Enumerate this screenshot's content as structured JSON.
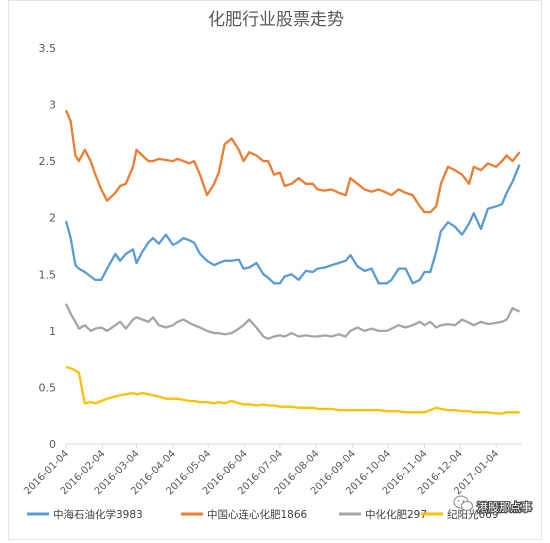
{
  "chart_data": {
    "type": "line",
    "title": "化肥行业股票走势",
    "xlabel": "",
    "ylabel": "",
    "ylim": [
      0,
      3.5
    ],
    "yticks": [
      "0",
      "0.5",
      "1",
      "1.5",
      "2",
      "2.5",
      "3",
      "3.5"
    ],
    "xticks": [
      "2016-01-04",
      "2016-02-04",
      "2016-03-04",
      "2016-04-04",
      "2016-05-04",
      "2016-06-04",
      "2016-07-04",
      "2016-08-04",
      "2016-09-04",
      "2016-10-04",
      "2016-11-04",
      "2016-12-04",
      "2017-01-04"
    ],
    "grid": false,
    "legend_position": "bottom",
    "series": [
      {
        "name": "中海石油化学3983",
        "color": "#5b9bd5",
        "x": [
          "2016-01-04",
          "2016-01-08",
          "2016-01-12",
          "2016-01-15",
          "2016-01-20",
          "2016-01-25",
          "2016-01-29",
          "2016-02-03",
          "2016-02-08",
          "2016-02-15",
          "2016-02-19",
          "2016-02-24",
          "2016-03-01",
          "2016-03-04",
          "2016-03-09",
          "2016-03-14",
          "2016-03-18",
          "2016-03-23",
          "2016-03-29",
          "2016-04-04",
          "2016-04-08",
          "2016-04-13",
          "2016-04-18",
          "2016-04-22",
          "2016-04-27",
          "2016-05-03",
          "2016-05-09",
          "2016-05-13",
          "2016-05-18",
          "2016-05-24",
          "2016-05-30",
          "2016-06-03",
          "2016-06-08",
          "2016-06-14",
          "2016-06-20",
          "2016-06-24",
          "2016-06-29",
          "2016-07-04",
          "2016-07-08",
          "2016-07-14",
          "2016-07-20",
          "2016-07-26",
          "2016-08-01",
          "2016-08-05",
          "2016-08-11",
          "2016-08-17",
          "2016-08-23",
          "2016-08-29",
          "2016-09-02",
          "2016-09-08",
          "2016-09-14",
          "2016-09-20",
          "2016-09-26",
          "2016-10-03",
          "2016-10-07",
          "2016-10-13",
          "2016-10-19",
          "2016-10-25",
          "2016-10-31",
          "2016-11-04",
          "2016-11-09",
          "2016-11-14",
          "2016-11-18",
          "2016-11-24",
          "2016-11-30",
          "2016-12-06",
          "2016-12-12",
          "2016-12-16",
          "2016-12-22",
          "2016-12-28",
          "2017-01-04",
          "2017-01-09",
          "2017-01-13",
          "2017-01-18",
          "2017-01-24"
        ],
        "values": [
          1.97,
          1.82,
          1.58,
          1.55,
          1.52,
          1.48,
          1.45,
          1.45,
          1.55,
          1.68,
          1.62,
          1.68,
          1.72,
          1.6,
          1.7,
          1.78,
          1.82,
          1.77,
          1.85,
          1.76,
          1.78,
          1.82,
          1.8,
          1.78,
          1.68,
          1.62,
          1.58,
          1.6,
          1.62,
          1.62,
          1.63,
          1.55,
          1.56,
          1.6,
          1.5,
          1.47,
          1.42,
          1.42,
          1.48,
          1.5,
          1.45,
          1.53,
          1.52,
          1.55,
          1.56,
          1.58,
          1.6,
          1.62,
          1.67,
          1.57,
          1.53,
          1.55,
          1.42,
          1.42,
          1.45,
          1.55,
          1.55,
          1.42,
          1.45,
          1.52,
          1.52,
          1.7,
          1.88,
          1.96,
          1.92,
          1.85,
          1.95,
          2.04,
          1.9,
          2.08,
          2.1,
          2.12,
          2.22,
          2.32,
          2.47
        ]
      },
      {
        "name": "中国心连心化肥1866",
        "color": "#ed7d31",
        "x": [
          "2016-01-04",
          "2016-01-08",
          "2016-01-12",
          "2016-01-15",
          "2016-01-20",
          "2016-01-25",
          "2016-01-29",
          "2016-02-03",
          "2016-02-08",
          "2016-02-15",
          "2016-02-19",
          "2016-02-24",
          "2016-03-01",
          "2016-03-04",
          "2016-03-09",
          "2016-03-14",
          "2016-03-18",
          "2016-03-23",
          "2016-03-29",
          "2016-04-04",
          "2016-04-08",
          "2016-04-13",
          "2016-04-18",
          "2016-04-22",
          "2016-04-27",
          "2016-05-03",
          "2016-05-09",
          "2016-05-13",
          "2016-05-18",
          "2016-05-24",
          "2016-05-30",
          "2016-06-03",
          "2016-06-08",
          "2016-06-14",
          "2016-06-20",
          "2016-06-24",
          "2016-06-29",
          "2016-07-04",
          "2016-07-08",
          "2016-07-14",
          "2016-07-20",
          "2016-07-26",
          "2016-08-01",
          "2016-08-05",
          "2016-08-11",
          "2016-08-17",
          "2016-08-23",
          "2016-08-29",
          "2016-09-02",
          "2016-09-08",
          "2016-09-14",
          "2016-09-20",
          "2016-09-26",
          "2016-10-03",
          "2016-10-07",
          "2016-10-13",
          "2016-10-19",
          "2016-10-25",
          "2016-10-31",
          "2016-11-04",
          "2016-11-09",
          "2016-11-14",
          "2016-11-18",
          "2016-11-24",
          "2016-11-30",
          "2016-12-06",
          "2016-12-12",
          "2016-12-16",
          "2016-12-22",
          "2016-12-28",
          "2017-01-04",
          "2017-01-09",
          "2017-01-13",
          "2017-01-18",
          "2017-01-24"
        ],
        "values": [
          2.95,
          2.85,
          2.55,
          2.5,
          2.6,
          2.5,
          2.38,
          2.25,
          2.15,
          2.22,
          2.28,
          2.3,
          2.45,
          2.6,
          2.55,
          2.5,
          2.5,
          2.52,
          2.51,
          2.5,
          2.52,
          2.5,
          2.48,
          2.5,
          2.38,
          2.2,
          2.3,
          2.4,
          2.65,
          2.7,
          2.6,
          2.5,
          2.58,
          2.55,
          2.5,
          2.5,
          2.38,
          2.4,
          2.28,
          2.3,
          2.35,
          2.3,
          2.3,
          2.25,
          2.24,
          2.25,
          2.22,
          2.2,
          2.35,
          2.3,
          2.25,
          2.23,
          2.25,
          2.22,
          2.2,
          2.25,
          2.22,
          2.2,
          2.1,
          2.05,
          2.05,
          2.1,
          2.3,
          2.45,
          2.42,
          2.38,
          2.3,
          2.45,
          2.42,
          2.48,
          2.45,
          2.5,
          2.55,
          2.5,
          2.58
        ]
      },
      {
        "name": "中化化肥297",
        "color": "#a5a5a5",
        "x": [
          "2016-01-04",
          "2016-01-08",
          "2016-01-12",
          "2016-01-15",
          "2016-01-20",
          "2016-01-25",
          "2016-01-29",
          "2016-02-03",
          "2016-02-08",
          "2016-02-15",
          "2016-02-19",
          "2016-02-24",
          "2016-03-01",
          "2016-03-04",
          "2016-03-09",
          "2016-03-14",
          "2016-03-18",
          "2016-03-23",
          "2016-03-29",
          "2016-04-04",
          "2016-04-08",
          "2016-04-13",
          "2016-04-18",
          "2016-04-22",
          "2016-04-27",
          "2016-05-03",
          "2016-05-09",
          "2016-05-13",
          "2016-05-18",
          "2016-05-24",
          "2016-05-30",
          "2016-06-03",
          "2016-06-08",
          "2016-06-14",
          "2016-06-20",
          "2016-06-24",
          "2016-06-29",
          "2016-07-04",
          "2016-07-08",
          "2016-07-14",
          "2016-07-20",
          "2016-07-26",
          "2016-08-01",
          "2016-08-05",
          "2016-08-11",
          "2016-08-17",
          "2016-08-23",
          "2016-08-29",
          "2016-09-02",
          "2016-09-08",
          "2016-09-14",
          "2016-09-20",
          "2016-09-26",
          "2016-10-03",
          "2016-10-07",
          "2016-10-13",
          "2016-10-19",
          "2016-10-25",
          "2016-10-31",
          "2016-11-04",
          "2016-11-09",
          "2016-11-14",
          "2016-11-18",
          "2016-11-24",
          "2016-11-30",
          "2016-12-06",
          "2016-12-12",
          "2016-12-16",
          "2016-12-22",
          "2016-12-28",
          "2017-01-04",
          "2017-01-09",
          "2017-01-13",
          "2017-01-18",
          "2017-01-24"
        ],
        "values": [
          1.24,
          1.15,
          1.08,
          1.02,
          1.05,
          1.0,
          1.02,
          1.03,
          1.0,
          1.05,
          1.08,
          1.02,
          1.1,
          1.12,
          1.1,
          1.08,
          1.12,
          1.05,
          1.03,
          1.05,
          1.08,
          1.1,
          1.07,
          1.05,
          1.03,
          1.0,
          0.98,
          0.98,
          0.97,
          0.98,
          1.02,
          1.05,
          1.1,
          1.03,
          0.95,
          0.93,
          0.95,
          0.96,
          0.95,
          0.98,
          0.95,
          0.96,
          0.95,
          0.95,
          0.96,
          0.95,
          0.97,
          0.95,
          1.0,
          1.03,
          1.0,
          1.02,
          1.0,
          1.0,
          1.02,
          1.05,
          1.03,
          1.05,
          1.08,
          1.05,
          1.08,
          1.03,
          1.05,
          1.06,
          1.05,
          1.1,
          1.07,
          1.05,
          1.08,
          1.06,
          1.07,
          1.08,
          1.1,
          1.2,
          1.17
        ]
      },
      {
        "name": "纪阳光669",
        "color": "#ffc000",
        "x": [
          "2016-01-04",
          "2016-01-08",
          "2016-01-12",
          "2016-01-15",
          "2016-01-20",
          "2016-01-25",
          "2016-01-29",
          "2016-02-03",
          "2016-02-08",
          "2016-02-15",
          "2016-02-19",
          "2016-02-24",
          "2016-03-01",
          "2016-03-04",
          "2016-03-09",
          "2016-03-14",
          "2016-03-18",
          "2016-03-23",
          "2016-03-29",
          "2016-04-04",
          "2016-04-08",
          "2016-04-13",
          "2016-04-18",
          "2016-04-22",
          "2016-04-27",
          "2016-05-03",
          "2016-05-09",
          "2016-05-13",
          "2016-05-18",
          "2016-05-24",
          "2016-05-30",
          "2016-06-03",
          "2016-06-08",
          "2016-06-14",
          "2016-06-20",
          "2016-06-24",
          "2016-06-29",
          "2016-07-04",
          "2016-07-08",
          "2016-07-14",
          "2016-07-20",
          "2016-07-26",
          "2016-08-01",
          "2016-08-05",
          "2016-08-11",
          "2016-08-17",
          "2016-08-23",
          "2016-08-29",
          "2016-09-02",
          "2016-09-08",
          "2016-09-14",
          "2016-09-20",
          "2016-09-26",
          "2016-10-03",
          "2016-10-07",
          "2016-10-13",
          "2016-10-19",
          "2016-10-25",
          "2016-10-31",
          "2016-11-04",
          "2016-11-09",
          "2016-11-14",
          "2016-11-18",
          "2016-11-24",
          "2016-11-30",
          "2016-12-06",
          "2016-12-12",
          "2016-12-16",
          "2016-12-22",
          "2016-12-28",
          "2017-01-04",
          "2017-01-09",
          "2017-01-13",
          "2017-01-18",
          "2017-01-24"
        ],
        "values": [
          0.68,
          0.67,
          0.65,
          0.63,
          0.36,
          0.37,
          0.36,
          0.38,
          0.4,
          0.42,
          0.43,
          0.44,
          0.45,
          0.44,
          0.45,
          0.44,
          0.43,
          0.42,
          0.4,
          0.4,
          0.4,
          0.39,
          0.38,
          0.38,
          0.37,
          0.37,
          0.36,
          0.37,
          0.36,
          0.38,
          0.36,
          0.35,
          0.35,
          0.34,
          0.35,
          0.34,
          0.34,
          0.33,
          0.33,
          0.33,
          0.32,
          0.32,
          0.32,
          0.31,
          0.31,
          0.31,
          0.3,
          0.3,
          0.3,
          0.3,
          0.3,
          0.3,
          0.3,
          0.29,
          0.29,
          0.29,
          0.28,
          0.28,
          0.28,
          0.28,
          0.3,
          0.32,
          0.31,
          0.3,
          0.3,
          0.29,
          0.29,
          0.28,
          0.28,
          0.28,
          0.27,
          0.27,
          0.28,
          0.28,
          0.28
        ]
      }
    ]
  },
  "watermark": {
    "text": "港股那点事",
    "icon": "wechat-icon"
  }
}
